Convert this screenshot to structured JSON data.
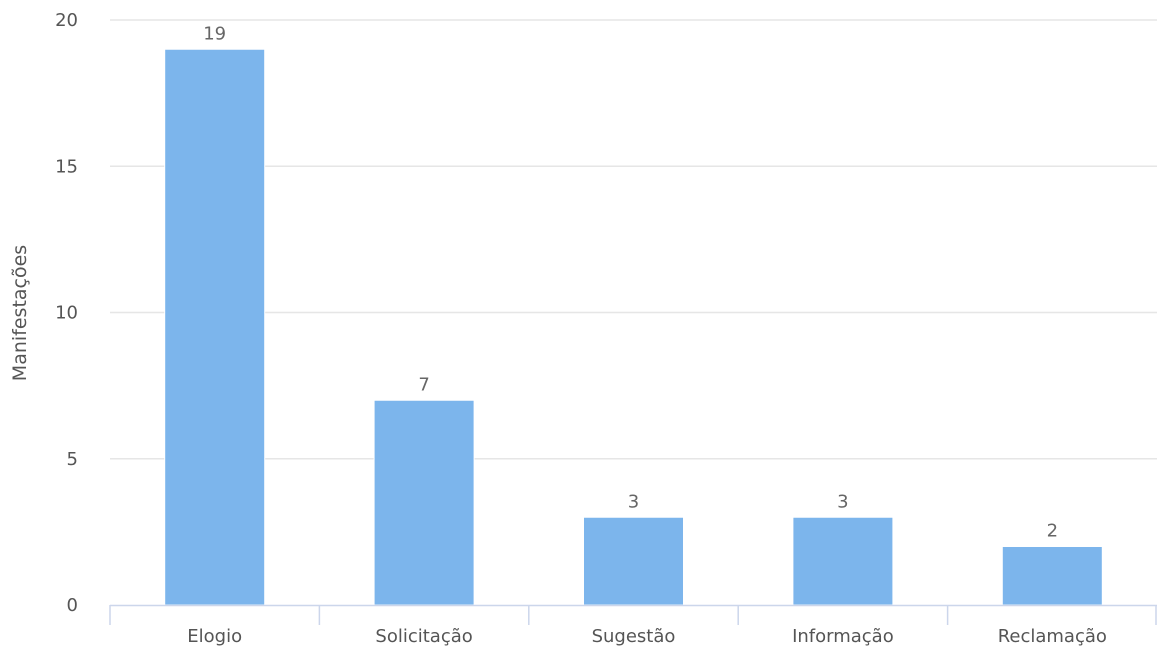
{
  "chart_data": {
    "type": "bar",
    "categories": [
      "Elogio",
      "Solicitação",
      "Sugestão",
      "Informação",
      "Reclamação"
    ],
    "values": [
      19,
      7,
      3,
      3,
      2
    ],
    "ylabel": "Manifestações",
    "xlabel": "",
    "ylim": [
      0,
      20
    ],
    "yticks": [
      0,
      5,
      10,
      15,
      20
    ],
    "data_labels": true,
    "grid": true,
    "bar_color": "#7cb5ec",
    "gridline_color": "#e6e6e6",
    "axis_line_color": "#ccd6eb"
  }
}
